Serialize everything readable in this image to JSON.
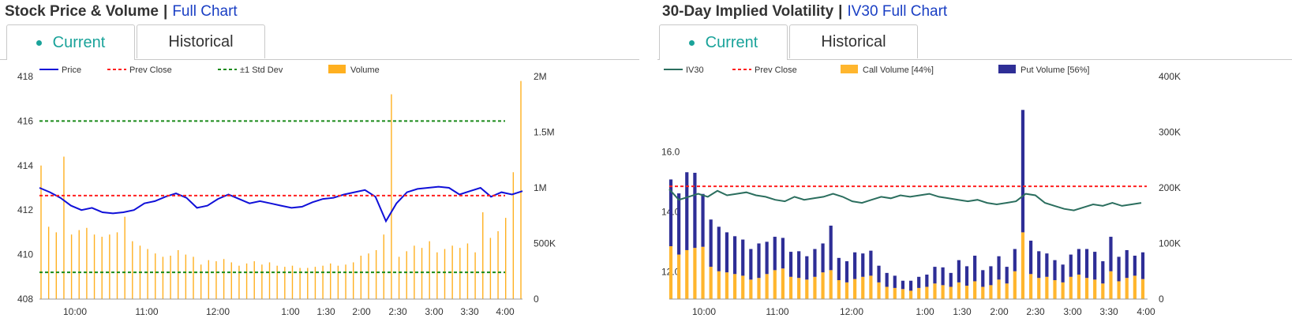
{
  "left_panel": {
    "title": "Stock Price & Volume",
    "separator": "|",
    "link": "Full Chart",
    "tabs": [
      {
        "label": "Current",
        "active": true
      },
      {
        "label": "Historical",
        "active": false
      }
    ]
  },
  "right_panel": {
    "title": "30-Day Implied Volatility",
    "separator": "|",
    "link": "IV30 Full Chart",
    "tabs": [
      {
        "label": "Current",
        "active": true
      },
      {
        "label": "Historical",
        "active": false
      }
    ]
  },
  "colors": {
    "price": "#1010d8",
    "prev_close": "#ff2020",
    "std_dev": "#1a8a1a",
    "volume": "#ffb020",
    "iv30": "#2b6e5e",
    "call_volume": "#ffb62e",
    "put_volume": "#2e2e96",
    "tab_active": "#1aa39a",
    "link": "#1a3fc4"
  },
  "chart_data": [
    {
      "type": "line",
      "legend": [
        "Price",
        "Prev Close",
        "±1 Std Dev",
        "Volume"
      ],
      "x_ticks": [
        "10:00",
        "11:00",
        "12:00",
        "1:00",
        "1:30",
        "2:00",
        "2:30",
        "3:00",
        "3:30",
        "4:00"
      ],
      "y_left_ticks": [
        "418",
        "416",
        "414",
        "412",
        "410",
        "408"
      ],
      "y_left_range": [
        408,
        418
      ],
      "y_right_ticks": [
        "2M",
        "1.5M",
        "1M",
        "500K",
        "0"
      ],
      "y_right_range": [
        0,
        2000000
      ],
      "prev_close": 412.65,
      "std_dev_upper": 416.0,
      "std_dev_lower": 409.2,
      "price": [
        413.0,
        412.8,
        412.55,
        412.2,
        412.0,
        412.1,
        411.9,
        411.85,
        411.9,
        412.0,
        412.3,
        412.4,
        412.6,
        412.75,
        412.55,
        412.1,
        412.2,
        412.5,
        412.7,
        412.5,
        412.3,
        412.4,
        412.3,
        412.2,
        412.1,
        412.15,
        412.35,
        412.5,
        412.55,
        412.7,
        412.8,
        412.9,
        412.6,
        411.5,
        412.3,
        412.8,
        412.95,
        413.0,
        413.05,
        413.0,
        412.7,
        412.85,
        413.0,
        412.6,
        412.8,
        412.7,
        412.85
      ],
      "volume": [
        1200000,
        650000,
        600000,
        1280000,
        580000,
        620000,
        640000,
        580000,
        560000,
        580000,
        600000,
        740000,
        520000,
        480000,
        450000,
        410000,
        380000,
        390000,
        440000,
        400000,
        380000,
        310000,
        350000,
        340000,
        360000,
        330000,
        300000,
        320000,
        340000,
        310000,
        330000,
        300000,
        290000,
        300000,
        280000,
        280000,
        290000,
        300000,
        320000,
        300000,
        310000,
        330000,
        390000,
        410000,
        440000,
        580000,
        1840000,
        380000,
        430000,
        480000,
        460000,
        520000,
        420000,
        450000,
        480000,
        460000,
        500000,
        420000,
        780000,
        550000,
        610000,
        730000,
        1140000,
        1960000
      ]
    },
    {
      "type": "bar",
      "legend": [
        "IV30",
        "Prev Close",
        "Call Volume [44%]",
        "Put Volume [56%]"
      ],
      "x_ticks": [
        "10:00",
        "11:00",
        "12:00",
        "1:00",
        "1:30",
        "2:00",
        "2:30",
        "3:00",
        "3:30",
        "4:00"
      ],
      "y_left_ticks": [
        "16.0",
        "14.0",
        "12.0"
      ],
      "y_left_range": [
        11.1,
        18.5
      ],
      "y_right_ticks": [
        "400K",
        "300K",
        "200K",
        "100K",
        "0"
      ],
      "y_right_range": [
        0,
        400000
      ],
      "prev_close": 14.85,
      "iv30": [
        14.75,
        14.4,
        14.5,
        14.6,
        14.5,
        14.7,
        14.55,
        14.6,
        14.65,
        14.55,
        14.5,
        14.4,
        14.35,
        14.5,
        14.4,
        14.45,
        14.5,
        14.6,
        14.5,
        14.35,
        14.3,
        14.4,
        14.5,
        14.45,
        14.55,
        14.5,
        14.55,
        14.6,
        14.5,
        14.45,
        14.4,
        14.35,
        14.4,
        14.3,
        14.25,
        14.3,
        14.35,
        14.6,
        14.55,
        14.3,
        14.2,
        14.1,
        14.05,
        14.15,
        14.25,
        14.2,
        14.3,
        14.2,
        14.25,
        14.3
      ],
      "call_volume": [
        95000,
        80000,
        88000,
        92000,
        94000,
        58000,
        50000,
        48000,
        45000,
        42000,
        35000,
        38000,
        45000,
        52000,
        55000,
        40000,
        38000,
        35000,
        40000,
        48000,
        52000,
        34000,
        30000,
        36000,
        40000,
        42000,
        30000,
        22000,
        20000,
        18000,
        15000,
        20000,
        22000,
        28000,
        25000,
        22000,
        30000,
        24000,
        32000,
        22000,
        25000,
        35000,
        28000,
        50000,
        120000,
        45000,
        38000,
        40000,
        34000,
        30000,
        40000,
        44000,
        38000,
        35000,
        28000,
        50000,
        32000,
        38000,
        42000,
        36000
      ],
      "put_volume": [
        120000,
        110000,
        140000,
        135000,
        95000,
        85000,
        80000,
        72000,
        68000,
        65000,
        55000,
        62000,
        58000,
        60000,
        55000,
        45000,
        48000,
        42000,
        50000,
        52000,
        80000,
        40000,
        38000,
        48000,
        42000,
        45000,
        30000,
        25000,
        22000,
        15000,
        18000,
        20000,
        22000,
        30000,
        32000,
        25000,
        40000,
        35000,
        46000,
        30000,
        34000,
        42000,
        30000,
        40000,
        220000,
        60000,
        48000,
        42000,
        36000,
        32000,
        40000,
        46000,
        52000,
        50000,
        40000,
        62000,
        44000,
        50000,
        36000,
        48000
      ]
    }
  ]
}
